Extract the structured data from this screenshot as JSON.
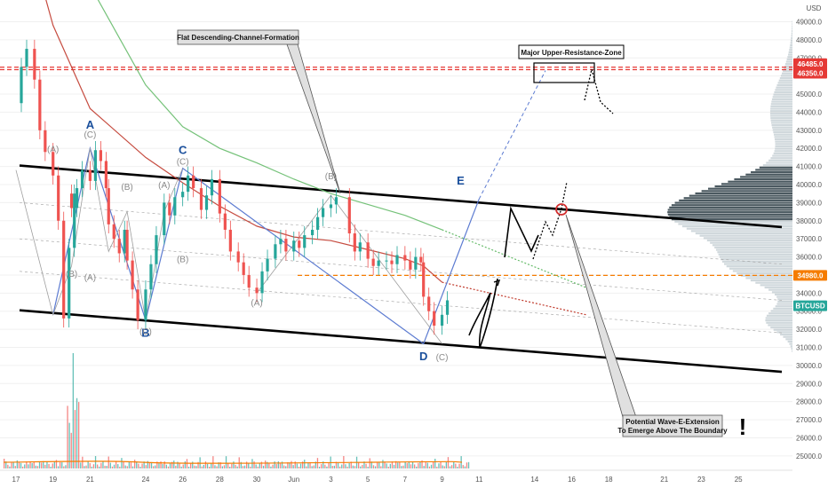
{
  "chart_data": {
    "type": "line",
    "symbol": "BTCUSD",
    "y_axis": {
      "currency": "USD",
      "ticks": [
        "49000.0",
        "48000.0",
        "47000.0",
        "46000.0",
        "45000.0",
        "44000.0",
        "43000.0",
        "42000.0",
        "41000.0",
        "40000.0",
        "39000.0",
        "38000.0",
        "37000.0",
        "36000.0",
        "35000.0",
        "34000.0",
        "33000.0",
        "32000.0",
        "31000.0",
        "30000.0",
        "29000.0",
        "28000.0",
        "27000.0",
        "26000.0",
        "25000.0"
      ],
      "ylim": [
        24600,
        50200
      ]
    },
    "x_axis": {
      "ticks": [
        "17",
        "19",
        "21",
        "24",
        "26",
        "28",
        "30",
        "Jun",
        "3",
        "5",
        "7",
        "9",
        "11",
        "14",
        "16",
        "18",
        "21",
        "23",
        "25"
      ]
    },
    "price_tags": [
      {
        "label": "46485.0",
        "value": 46485,
        "color": "#e53935"
      },
      {
        "label": "46350.0",
        "value": 46350,
        "color": "#e53935"
      },
      {
        "label": "34980.0",
        "value": 34980,
        "color": "#f57c00"
      },
      {
        "label": "BTCUSD",
        "value": 33300,
        "color": "#26a69a"
      }
    ],
    "levels": [
      {
        "name": "resistance-upper",
        "value": 46485,
        "style": "dashed",
        "color": "#e53935"
      },
      {
        "name": "resistance-lower",
        "value": 46350,
        "style": "dashed",
        "color": "#e53935"
      },
      {
        "name": "horizontal-level",
        "value": 34980,
        "style": "dashed",
        "color": "#f57c00"
      }
    ],
    "channel": {
      "upper": [
        {
          "x": "17",
          "y": 41050
        },
        {
          "x": "25",
          "y": 37650
        }
      ],
      "lower": [
        {
          "x": "17",
          "y": 33050
        },
        {
          "x": "25",
          "y": 29650
        }
      ]
    },
    "price_series": [
      [
        "May 17",
        44500
      ],
      [
        "May 17",
        46500
      ],
      [
        "May 17",
        47500
      ],
      [
        "May 18",
        45800
      ],
      [
        "May 18",
        43000
      ],
      [
        "May 18",
        41800
      ],
      [
        "May 19",
        40500
      ],
      [
        "May 19",
        38000
      ],
      [
        "May 19",
        32600
      ],
      [
        "May 19",
        36500
      ],
      [
        "May 19",
        39500
      ],
      [
        "May 20",
        38700
      ],
      [
        "May 20",
        39800
      ],
      [
        "May 20",
        40800
      ],
      [
        "May 21",
        40200
      ],
      [
        "May 21",
        41900
      ],
      [
        "May 21",
        41300
      ],
      [
        "May 21",
        39800
      ],
      [
        "May 22",
        37800
      ],
      [
        "May 22",
        37000
      ],
      [
        "May 22",
        36200
      ],
      [
        "May 22",
        37500
      ],
      [
        "May 23",
        35800
      ],
      [
        "May 23",
        34200
      ],
      [
        "May 23",
        32500
      ],
      [
        "May 24",
        34200
      ],
      [
        "May 24",
        35600
      ],
      [
        "May 24",
        37200
      ],
      [
        "May 25",
        39000
      ],
      [
        "May 25",
        38300
      ],
      [
        "May 25",
        39300
      ],
      [
        "May 26",
        39600
      ],
      [
        "May 26",
        40500
      ],
      [
        "May 26",
        39800
      ],
      [
        "May 27",
        38600
      ],
      [
        "May 27",
        39400
      ],
      [
        "May 27",
        40300
      ],
      [
        "May 28",
        38400
      ],
      [
        "May 28",
        37500
      ],
      [
        "May 28",
        36300
      ],
      [
        "May 29",
        35700
      ],
      [
        "May 29",
        35000
      ],
      [
        "May 29",
        34300
      ],
      [
        "May 30",
        34000
      ],
      [
        "May 30",
        35200
      ],
      [
        "May 30",
        35900
      ],
      [
        "May 31",
        36700
      ],
      [
        "May 31",
        37000
      ],
      [
        "May 31",
        36300
      ],
      [
        "Jun 1",
        36900
      ],
      [
        "Jun 1",
        36500
      ],
      [
        "Jun 1",
        37200
      ],
      [
        "Jun 2",
        37500
      ],
      [
        "Jun 2",
        38200
      ],
      [
        "Jun 2",
        38700
      ],
      [
        "Jun 3",
        38900
      ],
      [
        "Jun 3",
        39300
      ],
      [
        "Jun 4",
        37300
      ],
      [
        "Jun 4",
        36300
      ],
      [
        "Jun 4",
        36800
      ],
      [
        "Jun 5",
        35900
      ],
      [
        "Jun 5",
        35500
      ],
      [
        "Jun 5",
        35800
      ],
      [
        "Jun 6",
        35800
      ],
      [
        "Jun 6",
        35600
      ],
      [
        "Jun 6",
        36100
      ],
      [
        "Jun 7",
        35800
      ],
      [
        "Jun 7",
        35300
      ],
      [
        "Jun 7",
        36000
      ],
      [
        "Jun 7",
        35700
      ],
      [
        "Jun 8",
        33800
      ],
      [
        "Jun 8",
        33000
      ],
      [
        "Jun 8",
        32200
      ],
      [
        "Jun 9",
        32800
      ],
      [
        "Jun 9",
        33600
      ]
    ],
    "moving_averages": [
      {
        "color": "#c0392b",
        "points": [
          [
            "May 17",
            56000
          ],
          [
            "May 18",
            52500
          ],
          [
            "May 19",
            48800
          ],
          [
            "May 21",
            44200
          ],
          [
            "May 24",
            41500
          ],
          [
            "May 26",
            40100
          ],
          [
            "May 28",
            38800
          ],
          [
            "May 30",
            37700
          ],
          [
            "Jun 1",
            37100
          ],
          [
            "Jun 3",
            36900
          ],
          [
            "Jun 5",
            36400
          ],
          [
            "Jun 7",
            35900
          ],
          [
            "Jun 8",
            35500
          ],
          [
            "Jun 9",
            34600
          ]
        ]
      },
      {
        "color": "#66bb6a",
        "points": [
          [
            "May 19",
            55000
          ],
          [
            "May 21",
            51000
          ],
          [
            "May 24",
            45500
          ],
          [
            "May 26",
            43200
          ],
          [
            "May 28",
            42000
          ],
          [
            "May 30",
            41200
          ],
          [
            "Jun 1",
            40300
          ],
          [
            "Jun 3",
            39500
          ],
          [
            "Jun 5",
            38900
          ],
          [
            "Jun 7",
            38300
          ],
          [
            "Jun 8",
            37900
          ],
          [
            "Jun 9",
            37500
          ]
        ]
      }
    ],
    "wave_labels": [
      {
        "text": "A",
        "x": "May 21",
        "y": 43100,
        "style": "primary"
      },
      {
        "text": "B",
        "x": "May 24",
        "y": 31600,
        "style": "primary"
      },
      {
        "text": "C",
        "x": "May 26",
        "y": 41700,
        "style": "primary"
      },
      {
        "text": "D",
        "x": "Jun 8",
        "y": 30300,
        "style": "primary"
      },
      {
        "text": "E",
        "x": "Jun 10",
        "y": 40000,
        "style": "primary"
      },
      {
        "text": "(A)",
        "x": "May 19",
        "y": 41800,
        "style": "secondary"
      },
      {
        "text": "(C)",
        "x": "May 21",
        "y": 42600,
        "style": "secondary"
      },
      {
        "text": "(B)",
        "x": "May 20",
        "y": 34900,
        "style": "secondary"
      },
      {
        "text": "(A)",
        "x": "May 21",
        "y": 34700,
        "style": "secondary"
      },
      {
        "text": "(B)",
        "x": "May 23",
        "y": 39700,
        "style": "secondary"
      },
      {
        "text": "(C)",
        "x": "May 24",
        "y": 31700,
        "style": "secondary"
      },
      {
        "text": "(A)",
        "x": "May 25",
        "y": 39800,
        "style": "secondary"
      },
      {
        "text": "(C)",
        "x": "May 26",
        "y": 41100,
        "style": "secondary"
      },
      {
        "text": "(B)",
        "x": "May 26",
        "y": 35700,
        "style": "secondary"
      },
      {
        "text": "(A)",
        "x": "May 30",
        "y": 33300,
        "style": "secondary"
      },
      {
        "text": "(B)",
        "x": "Jun 3",
        "y": 40300,
        "style": "secondary"
      },
      {
        "text": "(C)",
        "x": "Jun 9",
        "y": 30300,
        "style": "secondary"
      }
    ],
    "annotations": [
      {
        "text": "Flat Descending-Channel-Formation",
        "x": "May 29",
        "y": 48300
      },
      {
        "text": "Major Upper-Resistance-Zone",
        "x": "Jun 14",
        "y": 47800
      },
      {
        "text": "Potential Wave-E-Extension",
        "x": "Jun 18",
        "y": 27000
      },
      {
        "text": "To Emerge Above The Boundary",
        "x": "Jun 18",
        "y": 26500
      },
      {
        "text": "!",
        "x": "Jun 22",
        "y": 26800
      }
    ]
  }
}
